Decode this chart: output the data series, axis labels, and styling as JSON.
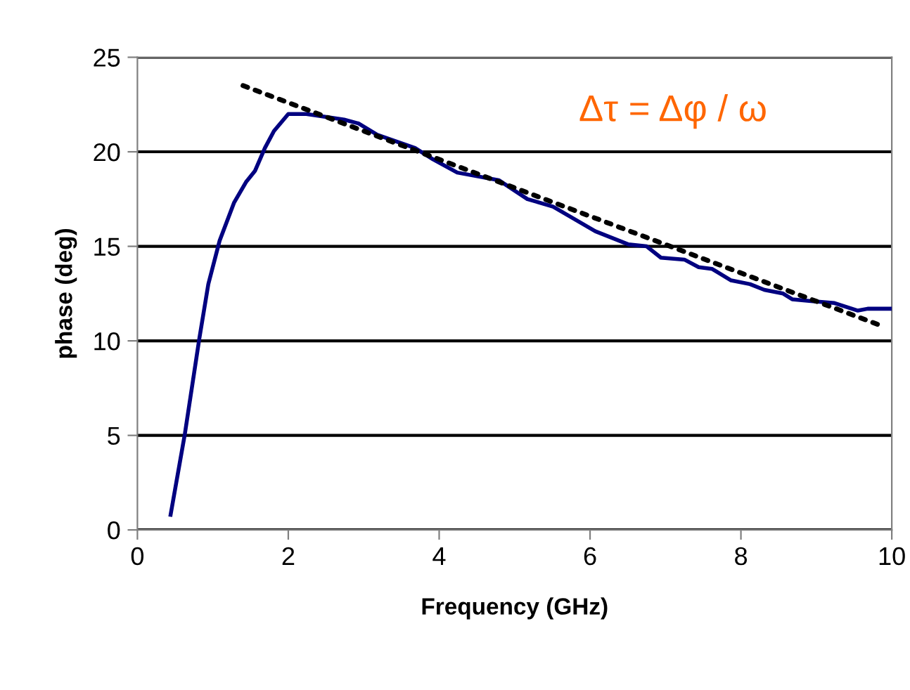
{
  "chart_data": {
    "type": "line",
    "xlabel": "Frequency (GHz)",
    "ylabel": "phase (deg)",
    "xlim": [
      0,
      10
    ],
    "xticks": [
      0,
      2,
      4,
      6,
      8,
      10
    ],
    "ylim": [
      0,
      25
    ],
    "yticks": [
      0,
      5,
      10,
      15,
      20,
      25
    ],
    "grid": "y",
    "annotations": [
      "Δτ = Δφ / ω"
    ],
    "series": [
      {
        "color": "#000080",
        "line_style": "solid",
        "x": [
          0.44,
          0.63,
          0.82,
          0.94,
          1.09,
          1.28,
          1.44,
          1.56,
          1.69,
          1.81,
          2.0,
          2.24,
          2.74,
          2.93,
          3.18,
          3.68,
          3.92,
          4.24,
          4.79,
          5.17,
          5.51,
          6.07,
          6.51,
          6.75,
          6.94,
          7.25,
          7.44,
          7.62,
          7.87,
          8.12,
          8.31,
          8.56,
          8.68,
          8.93,
          9.24,
          9.55,
          9.68,
          10.0
        ],
        "values": [
          0.8,
          5.1,
          10.1,
          13.0,
          15.3,
          17.3,
          18.4,
          19.0,
          20.2,
          21.1,
          22.0,
          22.0,
          21.7,
          21.5,
          20.9,
          20.2,
          19.6,
          18.9,
          18.5,
          17.5,
          17.1,
          15.8,
          15.1,
          15.0,
          14.4,
          14.3,
          13.9,
          13.8,
          13.2,
          13.0,
          12.7,
          12.5,
          12.2,
          12.1,
          12.0,
          11.6,
          11.7,
          11.7
        ]
      },
      {
        "color": "#000000",
        "line_style": "dotted",
        "x": [
          1.4,
          9.86
        ],
        "values": [
          23.5,
          10.8
        ]
      }
    ]
  }
}
